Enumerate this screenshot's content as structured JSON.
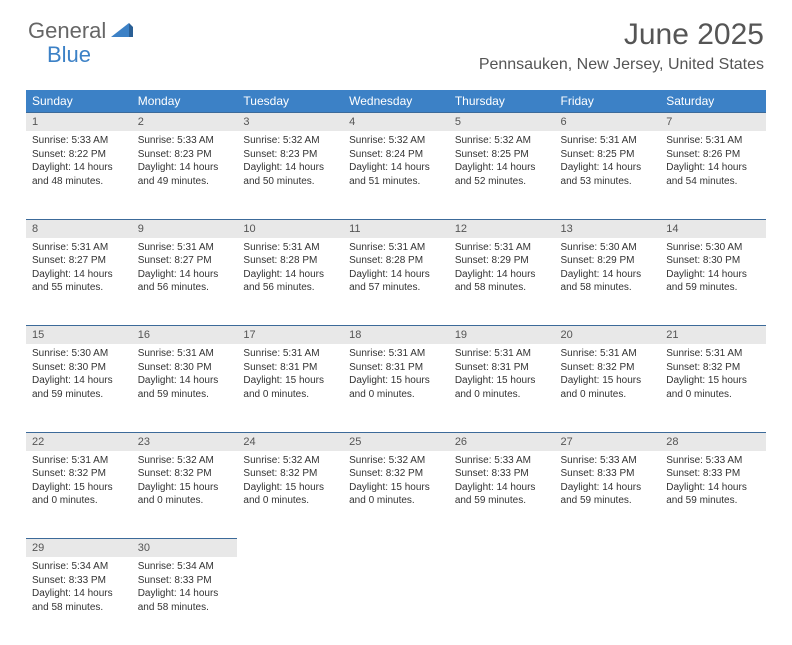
{
  "brand": {
    "general": "General",
    "blue": "Blue"
  },
  "header": {
    "month_title": "June 2025",
    "location": "Pennsauken, New Jersey, United States"
  },
  "colors": {
    "header_bg": "#3c81c6",
    "border": "#3c6a99",
    "daynum_bg": "#e8e8e8",
    "text": "#333333",
    "title_text": "#555555"
  },
  "day_names": [
    "Sunday",
    "Monday",
    "Tuesday",
    "Wednesday",
    "Thursday",
    "Friday",
    "Saturday"
  ],
  "days": [
    {
      "n": "1",
      "sunrise": "Sunrise: 5:33 AM",
      "sunset": "Sunset: 8:22 PM",
      "dl1": "Daylight: 14 hours",
      "dl2": "and 48 minutes."
    },
    {
      "n": "2",
      "sunrise": "Sunrise: 5:33 AM",
      "sunset": "Sunset: 8:23 PM",
      "dl1": "Daylight: 14 hours",
      "dl2": "and 49 minutes."
    },
    {
      "n": "3",
      "sunrise": "Sunrise: 5:32 AM",
      "sunset": "Sunset: 8:23 PM",
      "dl1": "Daylight: 14 hours",
      "dl2": "and 50 minutes."
    },
    {
      "n": "4",
      "sunrise": "Sunrise: 5:32 AM",
      "sunset": "Sunset: 8:24 PM",
      "dl1": "Daylight: 14 hours",
      "dl2": "and 51 minutes."
    },
    {
      "n": "5",
      "sunrise": "Sunrise: 5:32 AM",
      "sunset": "Sunset: 8:25 PM",
      "dl1": "Daylight: 14 hours",
      "dl2": "and 52 minutes."
    },
    {
      "n": "6",
      "sunrise": "Sunrise: 5:31 AM",
      "sunset": "Sunset: 8:25 PM",
      "dl1": "Daylight: 14 hours",
      "dl2": "and 53 minutes."
    },
    {
      "n": "7",
      "sunrise": "Sunrise: 5:31 AM",
      "sunset": "Sunset: 8:26 PM",
      "dl1": "Daylight: 14 hours",
      "dl2": "and 54 minutes."
    },
    {
      "n": "8",
      "sunrise": "Sunrise: 5:31 AM",
      "sunset": "Sunset: 8:27 PM",
      "dl1": "Daylight: 14 hours",
      "dl2": "and 55 minutes."
    },
    {
      "n": "9",
      "sunrise": "Sunrise: 5:31 AM",
      "sunset": "Sunset: 8:27 PM",
      "dl1": "Daylight: 14 hours",
      "dl2": "and 56 minutes."
    },
    {
      "n": "10",
      "sunrise": "Sunrise: 5:31 AM",
      "sunset": "Sunset: 8:28 PM",
      "dl1": "Daylight: 14 hours",
      "dl2": "and 56 minutes."
    },
    {
      "n": "11",
      "sunrise": "Sunrise: 5:31 AM",
      "sunset": "Sunset: 8:28 PM",
      "dl1": "Daylight: 14 hours",
      "dl2": "and 57 minutes."
    },
    {
      "n": "12",
      "sunrise": "Sunrise: 5:31 AM",
      "sunset": "Sunset: 8:29 PM",
      "dl1": "Daylight: 14 hours",
      "dl2": "and 58 minutes."
    },
    {
      "n": "13",
      "sunrise": "Sunrise: 5:30 AM",
      "sunset": "Sunset: 8:29 PM",
      "dl1": "Daylight: 14 hours",
      "dl2": "and 58 minutes."
    },
    {
      "n": "14",
      "sunrise": "Sunrise: 5:30 AM",
      "sunset": "Sunset: 8:30 PM",
      "dl1": "Daylight: 14 hours",
      "dl2": "and 59 minutes."
    },
    {
      "n": "15",
      "sunrise": "Sunrise: 5:30 AM",
      "sunset": "Sunset: 8:30 PM",
      "dl1": "Daylight: 14 hours",
      "dl2": "and 59 minutes."
    },
    {
      "n": "16",
      "sunrise": "Sunrise: 5:31 AM",
      "sunset": "Sunset: 8:30 PM",
      "dl1": "Daylight: 14 hours",
      "dl2": "and 59 minutes."
    },
    {
      "n": "17",
      "sunrise": "Sunrise: 5:31 AM",
      "sunset": "Sunset: 8:31 PM",
      "dl1": "Daylight: 15 hours",
      "dl2": "and 0 minutes."
    },
    {
      "n": "18",
      "sunrise": "Sunrise: 5:31 AM",
      "sunset": "Sunset: 8:31 PM",
      "dl1": "Daylight: 15 hours",
      "dl2": "and 0 minutes."
    },
    {
      "n": "19",
      "sunrise": "Sunrise: 5:31 AM",
      "sunset": "Sunset: 8:31 PM",
      "dl1": "Daylight: 15 hours",
      "dl2": "and 0 minutes."
    },
    {
      "n": "20",
      "sunrise": "Sunrise: 5:31 AM",
      "sunset": "Sunset: 8:32 PM",
      "dl1": "Daylight: 15 hours",
      "dl2": "and 0 minutes."
    },
    {
      "n": "21",
      "sunrise": "Sunrise: 5:31 AM",
      "sunset": "Sunset: 8:32 PM",
      "dl1": "Daylight: 15 hours",
      "dl2": "and 0 minutes."
    },
    {
      "n": "22",
      "sunrise": "Sunrise: 5:31 AM",
      "sunset": "Sunset: 8:32 PM",
      "dl1": "Daylight: 15 hours",
      "dl2": "and 0 minutes."
    },
    {
      "n": "23",
      "sunrise": "Sunrise: 5:32 AM",
      "sunset": "Sunset: 8:32 PM",
      "dl1": "Daylight: 15 hours",
      "dl2": "and 0 minutes."
    },
    {
      "n": "24",
      "sunrise": "Sunrise: 5:32 AM",
      "sunset": "Sunset: 8:32 PM",
      "dl1": "Daylight: 15 hours",
      "dl2": "and 0 minutes."
    },
    {
      "n": "25",
      "sunrise": "Sunrise: 5:32 AM",
      "sunset": "Sunset: 8:32 PM",
      "dl1": "Daylight: 15 hours",
      "dl2": "and 0 minutes."
    },
    {
      "n": "26",
      "sunrise": "Sunrise: 5:33 AM",
      "sunset": "Sunset: 8:33 PM",
      "dl1": "Daylight: 14 hours",
      "dl2": "and 59 minutes."
    },
    {
      "n": "27",
      "sunrise": "Sunrise: 5:33 AM",
      "sunset": "Sunset: 8:33 PM",
      "dl1": "Daylight: 14 hours",
      "dl2": "and 59 minutes."
    },
    {
      "n": "28",
      "sunrise": "Sunrise: 5:33 AM",
      "sunset": "Sunset: 8:33 PM",
      "dl1": "Daylight: 14 hours",
      "dl2": "and 59 minutes."
    },
    {
      "n": "29",
      "sunrise": "Sunrise: 5:34 AM",
      "sunset": "Sunset: 8:33 PM",
      "dl1": "Daylight: 14 hours",
      "dl2": "and 58 minutes."
    },
    {
      "n": "30",
      "sunrise": "Sunrise: 5:34 AM",
      "sunset": "Sunset: 8:33 PM",
      "dl1": "Daylight: 14 hours",
      "dl2": "and 58 minutes."
    }
  ]
}
